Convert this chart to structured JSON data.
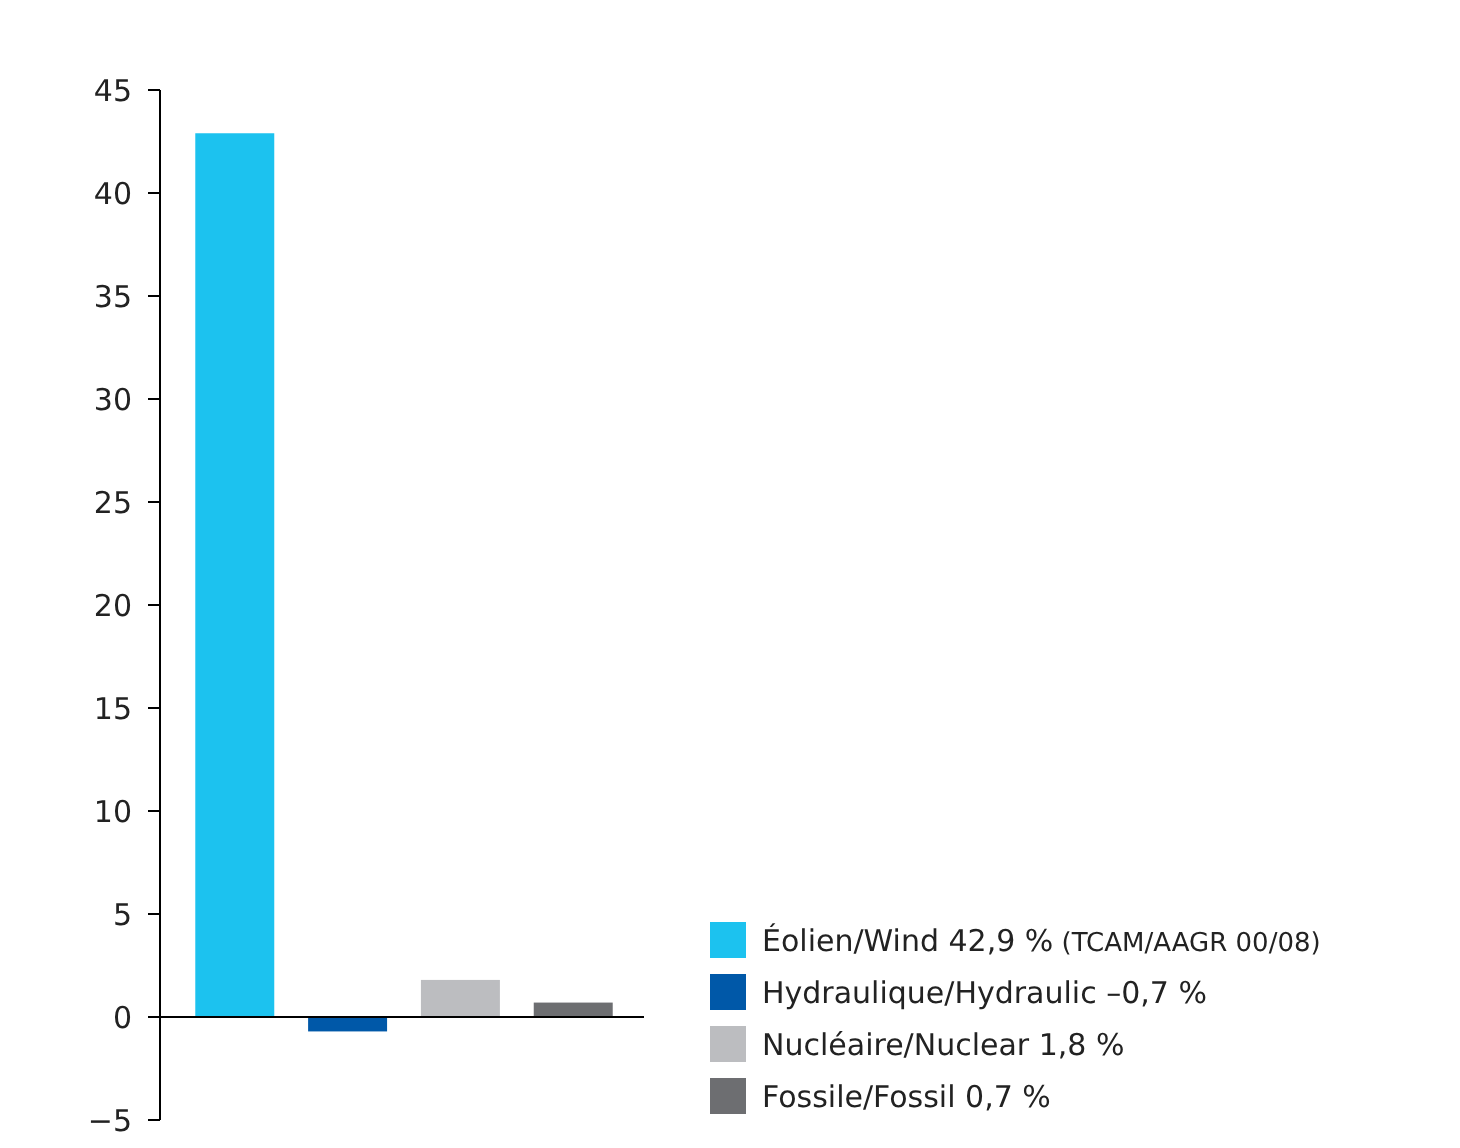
{
  "chart_data": {
    "type": "bar",
    "categories": [
      null,
      null,
      null,
      null
    ],
    "series": [
      {
        "name": "Éolien/Wind 42,9 %",
        "color": "#1cc2ef",
        "values": [
          42.9,
          null,
          null,
          null
        ]
      },
      {
        "name": "Hydraulique/Hydraulic –0,7 %",
        "color": "#0058a8",
        "values": [
          null,
          -0.7,
          null,
          null
        ]
      },
      {
        "name": "Nucléaire/Nuclear 1,8 %",
        "color": "#bcbdc0",
        "values": [
          null,
          null,
          1.8,
          null
        ]
      },
      {
        "name": "Fossile/Fossil 0,7 %",
        "color": "#6d6e71",
        "values": [
          null,
          null,
          null,
          0.7
        ]
      }
    ],
    "annotations": [
      "(TCAM/AAGR 00/08)"
    ],
    "ylim": [
      -5,
      45
    ],
    "yticks": [
      -5,
      0,
      5,
      10,
      15,
      20,
      25,
      30,
      35,
      40,
      45
    ],
    "legend": "bottom right"
  }
}
